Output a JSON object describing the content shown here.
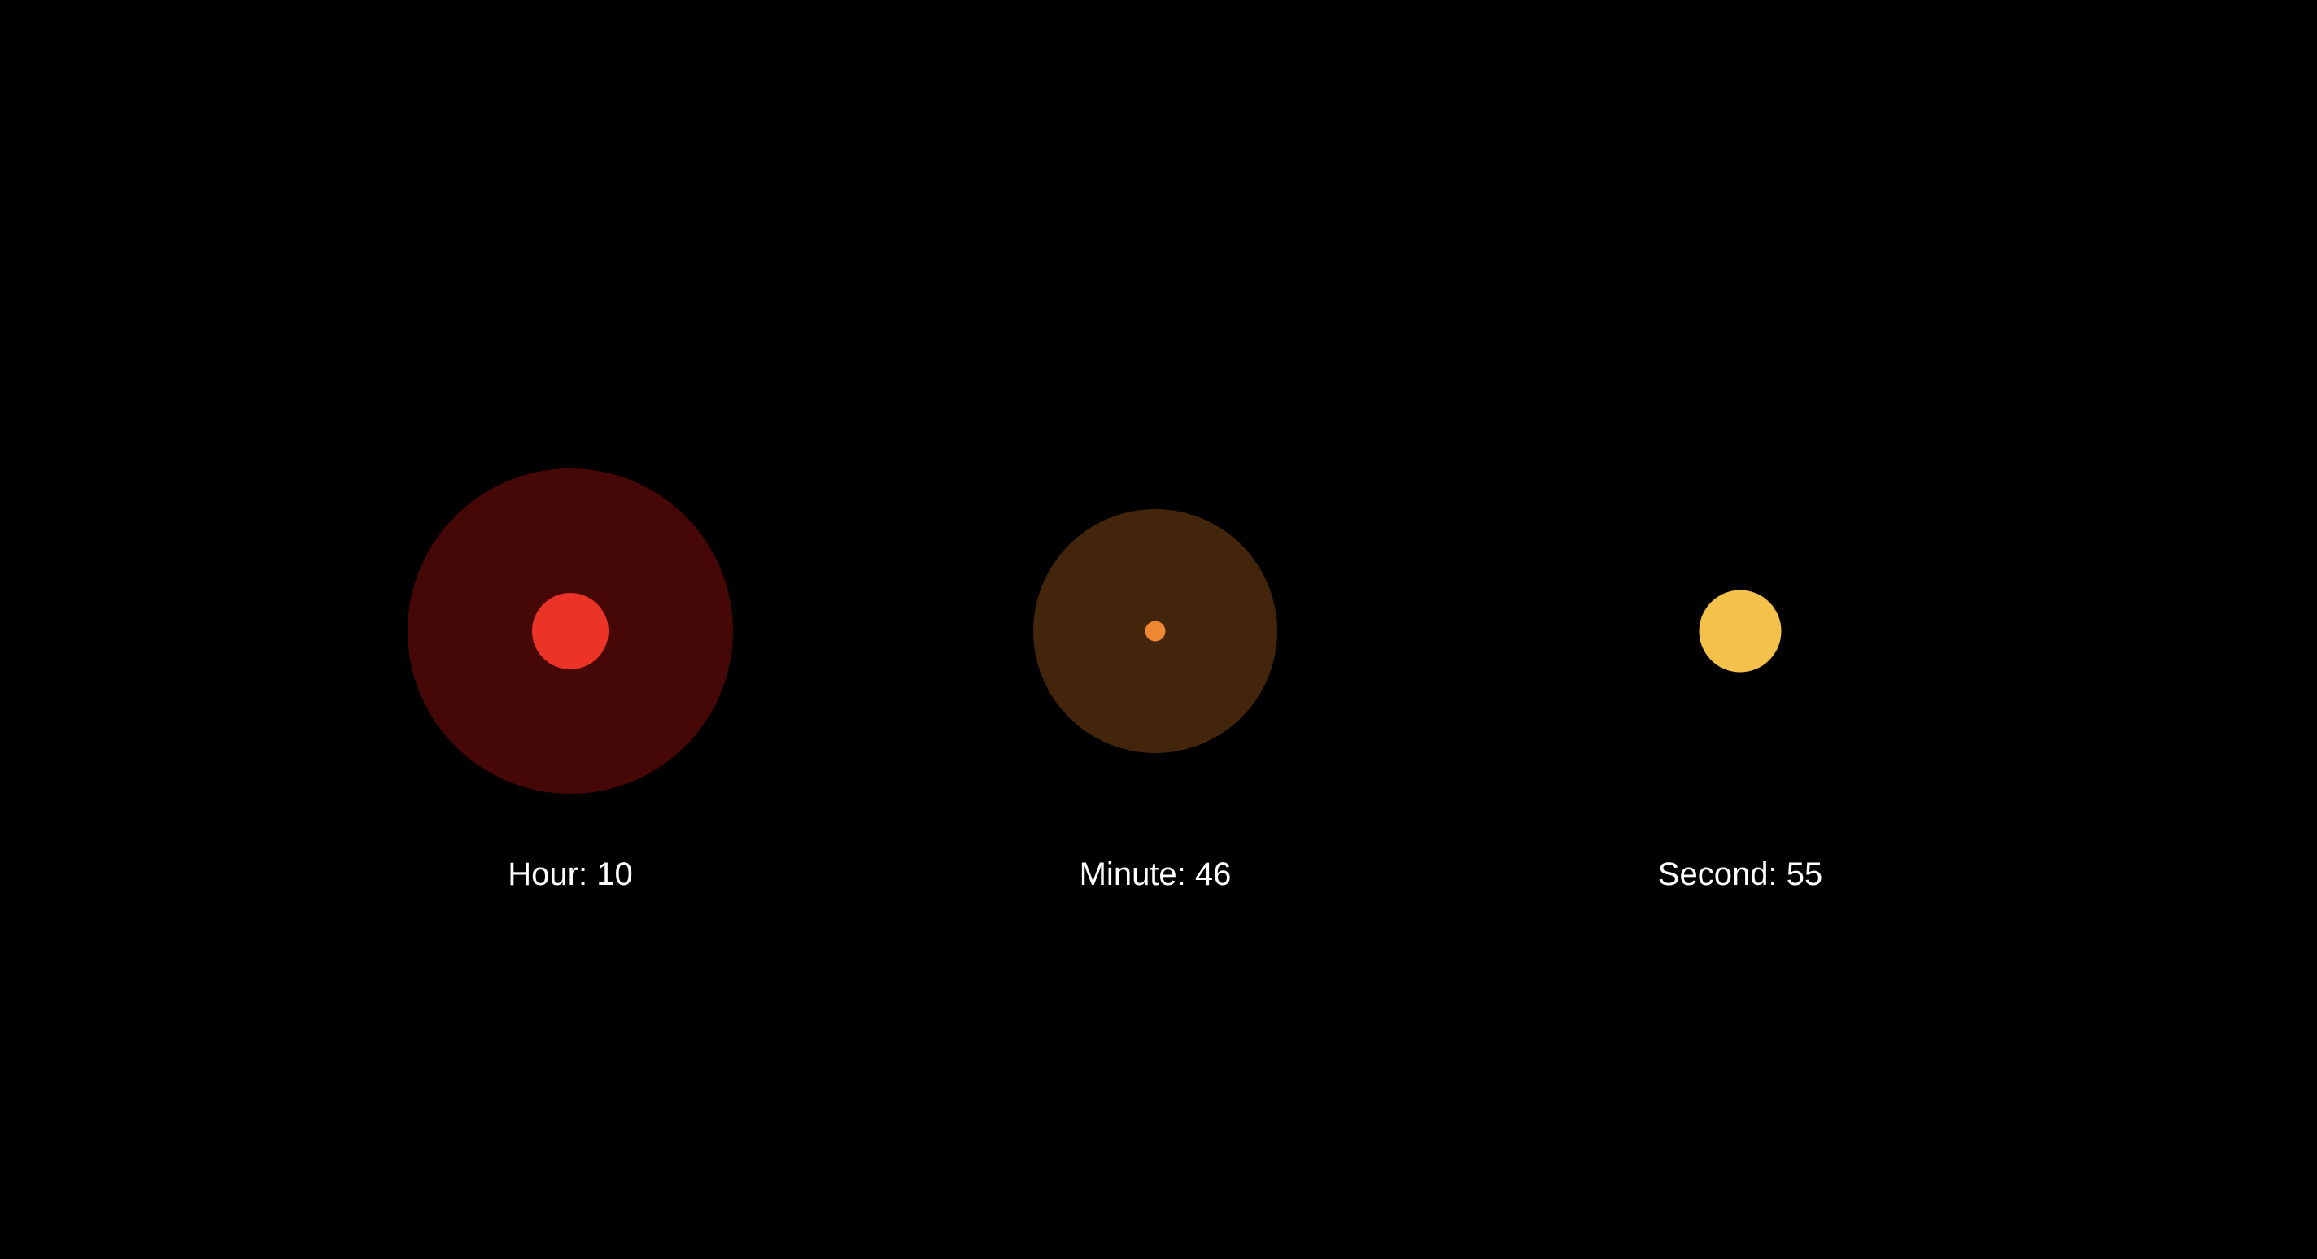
{
  "units": [
    {
      "key": "hour",
      "label": "Hour: 10",
      "value": 10,
      "ring_color": "#450806",
      "core_color": "#EB3327"
    },
    {
      "key": "minute",
      "label": "Minute: 46",
      "value": 46,
      "ring_color": "#42250B",
      "core_color": "#EE8731"
    },
    {
      "key": "second",
      "label": "Second: 55",
      "value": 55,
      "ring_color": "#000000",
      "core_color": "#F4C24A"
    }
  ],
  "background_color": "#000000",
  "label_color": "#FFFFFF"
}
